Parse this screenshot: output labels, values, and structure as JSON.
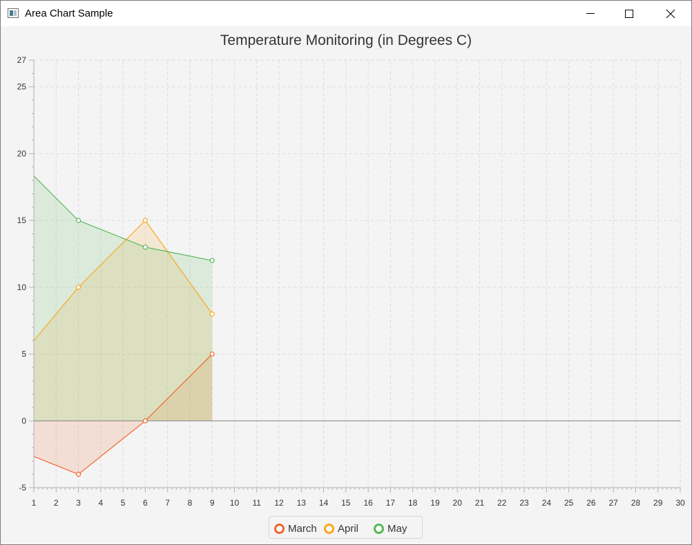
{
  "window": {
    "title": "Area Chart Sample"
  },
  "chart_data": {
    "type": "area",
    "title": "Temperature Monitoring (in Degrees C)",
    "xlabel": "",
    "ylabel": "",
    "xlim": [
      1,
      30
    ],
    "ylim": [
      -5,
      27
    ],
    "x_ticks": [
      1,
      2,
      3,
      4,
      5,
      6,
      7,
      8,
      9,
      10,
      11,
      12,
      13,
      14,
      15,
      16,
      17,
      18,
      19,
      20,
      21,
      22,
      23,
      24,
      25,
      26,
      27,
      28,
      29,
      30
    ],
    "y_ticks": [
      -5,
      0,
      5,
      10,
      15,
      20,
      25,
      27
    ],
    "grid": true,
    "legend_position": "bottom",
    "series": [
      {
        "name": "March",
        "color": "#f3622d",
        "x": [
          0,
          3,
          6,
          9
        ],
        "y": [
          -2,
          -4,
          0,
          5
        ]
      },
      {
        "name": "April",
        "color": "#fba71b",
        "x": [
          0,
          3,
          6,
          9
        ],
        "y": [
          4,
          10,
          15,
          8
        ]
      },
      {
        "name": "May",
        "color": "#57b757",
        "x": [
          0,
          3,
          6,
          9
        ],
        "y": [
          20,
          15,
          13,
          12
        ]
      }
    ]
  }
}
